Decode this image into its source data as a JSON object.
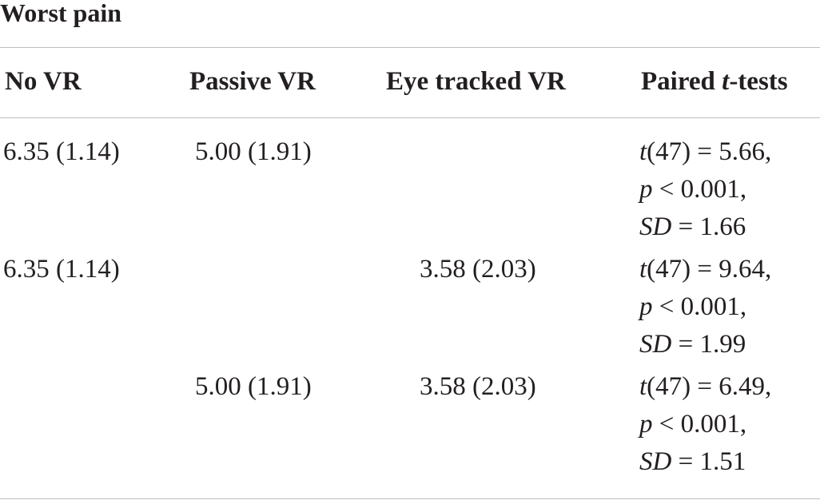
{
  "section_title": "Worst pain",
  "headers": {
    "no_vr": "No VR",
    "passive_vr": "Passive VR",
    "eye_tracked_vr": "Eye tracked VR",
    "paired_prefix": "Paired ",
    "paired_italic": "t",
    "paired_suffix": "-tests"
  },
  "rows": [
    {
      "no_vr": "6.35 (1.14)",
      "passive_vr": "5.00 (1.91)",
      "eye_tracked_vr": "",
      "t_df": "(47) = 5.66,",
      "p_val": " < 0.001,",
      "sd_val": " = 1.66"
    },
    {
      "no_vr": "6.35 (1.14)",
      "passive_vr": "",
      "eye_tracked_vr": "3.58 (2.03)",
      "t_df": "(47) = 9.64,",
      "p_val": " < 0.001,",
      "sd_val": " = 1.99"
    },
    {
      "no_vr": "",
      "passive_vr": "5.00 (1.91)",
      "eye_tracked_vr": "3.58 (2.03)",
      "t_df": "(47) = 6.49,",
      "p_val": " < 0.001,",
      "sd_val": " = 1.51"
    }
  ],
  "stat_symbols": {
    "t": "t",
    "p": "p",
    "sd": "SD"
  }
}
